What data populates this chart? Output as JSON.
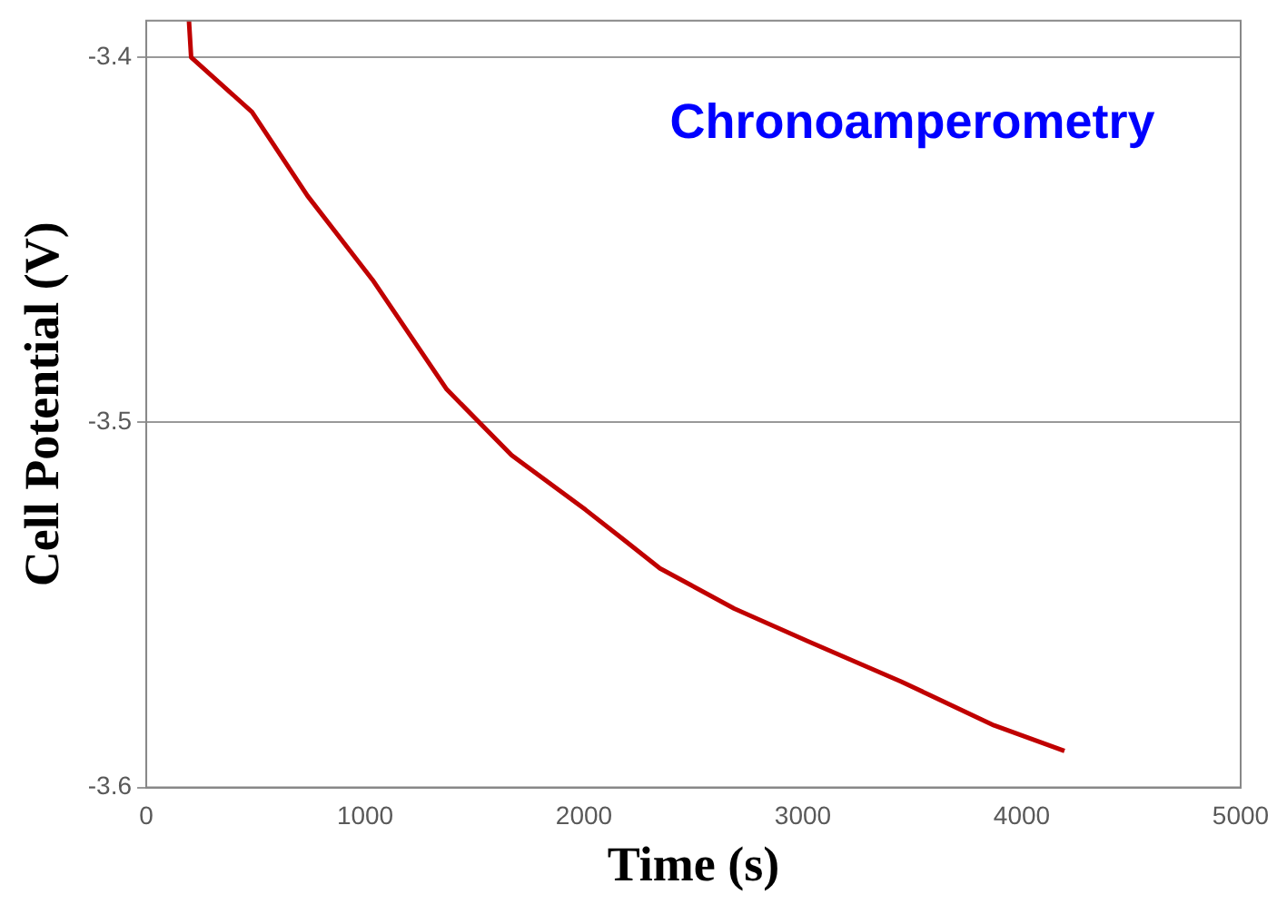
{
  "chart_data": {
    "type": "line",
    "title": "Chronoamperometry",
    "xlabel": "Time (s)",
    "ylabel": "Cell Potential (V)",
    "x": [
      195,
      205,
      483,
      737,
      1034,
      1373,
      1669,
      2008,
      2178,
      2347,
      2686,
      3025,
      3449,
      3873,
      4195
    ],
    "series": [
      {
        "color": "#c00000",
        "values": [
          -3.39,
          -3.4,
          -3.415,
          -3.438,
          -3.461,
          -3.491,
          -3.509,
          -3.524,
          -3.532,
          -3.54,
          -3.551,
          -3.56,
          -3.571,
          -3.583,
          -3.59
        ]
      }
    ],
    "xlim": [
      0,
      5000
    ],
    "xticks": [
      0,
      1000,
      2000,
      3000,
      4000,
      5000
    ],
    "ylim": [
      -3.6,
      -3.39
    ],
    "yticks": [
      -3.6,
      -3.5,
      -3.4
    ],
    "grid": "y",
    "legend": false,
    "marker": "none",
    "line_style": "solid"
  }
}
